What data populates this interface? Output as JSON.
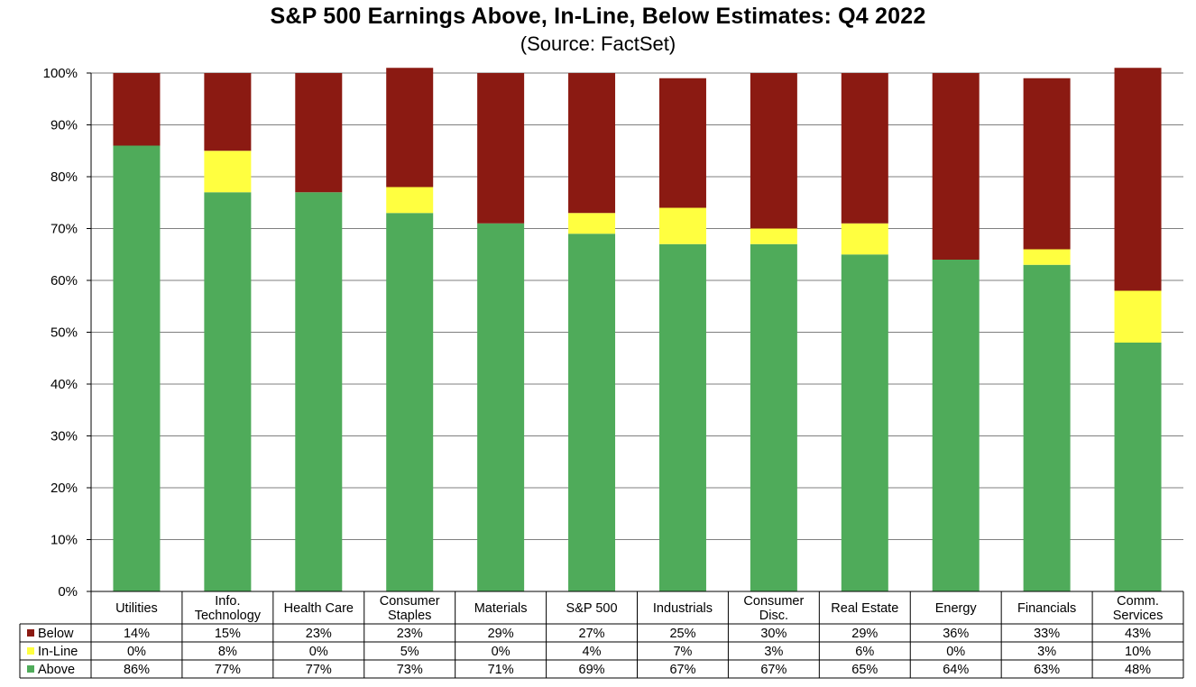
{
  "chart_data": {
    "type": "bar",
    "stacked": true,
    "title": "S&P 500 Earnings Above, In-Line, Below Estimates: Q4 2022",
    "subtitle": "(Source: FactSet)",
    "y_ticks": [
      "0%",
      "10%",
      "20%",
      "30%",
      "40%",
      "50%",
      "60%",
      "70%",
      "80%",
      "90%",
      "100%"
    ],
    "ylim": [
      0,
      100
    ],
    "grid": true,
    "legend_placement": "data-table",
    "categories": [
      [
        "Utilities"
      ],
      [
        "Info.",
        "Technology"
      ],
      [
        "Health Care"
      ],
      [
        "Consumer",
        "Staples"
      ],
      [
        "Materials"
      ],
      [
        "S&P 500"
      ],
      [
        "Industrials"
      ],
      [
        "Consumer",
        "Disc."
      ],
      [
        "Real Estate"
      ],
      [
        "Energy"
      ],
      [
        "Financials"
      ],
      [
        "Comm.",
        "Services"
      ]
    ],
    "series": [
      {
        "name": "Below",
        "color": "#8b1a12",
        "values": [
          14,
          15,
          23,
          23,
          29,
          27,
          25,
          30,
          29,
          36,
          33,
          43
        ],
        "labels": [
          "14%",
          "15%",
          "23%",
          "23%",
          "29%",
          "27%",
          "25%",
          "30%",
          "29%",
          "36%",
          "33%",
          "43%"
        ]
      },
      {
        "name": "In-Line",
        "color": "#ffff40",
        "values": [
          0,
          8,
          0,
          5,
          0,
          4,
          7,
          3,
          6,
          0,
          3,
          10
        ],
        "labels": [
          "0%",
          "8%",
          "0%",
          "5%",
          "0%",
          "4%",
          "7%",
          "3%",
          "6%",
          "0%",
          "3%",
          "10%"
        ]
      },
      {
        "name": "Above",
        "color": "#4fab5a",
        "values": [
          86,
          77,
          77,
          73,
          71,
          69,
          67,
          67,
          65,
          64,
          63,
          48
        ],
        "labels": [
          "86%",
          "77%",
          "77%",
          "73%",
          "71%",
          "69%",
          "67%",
          "67%",
          "65%",
          "64%",
          "63%",
          "48%"
        ]
      }
    ]
  }
}
